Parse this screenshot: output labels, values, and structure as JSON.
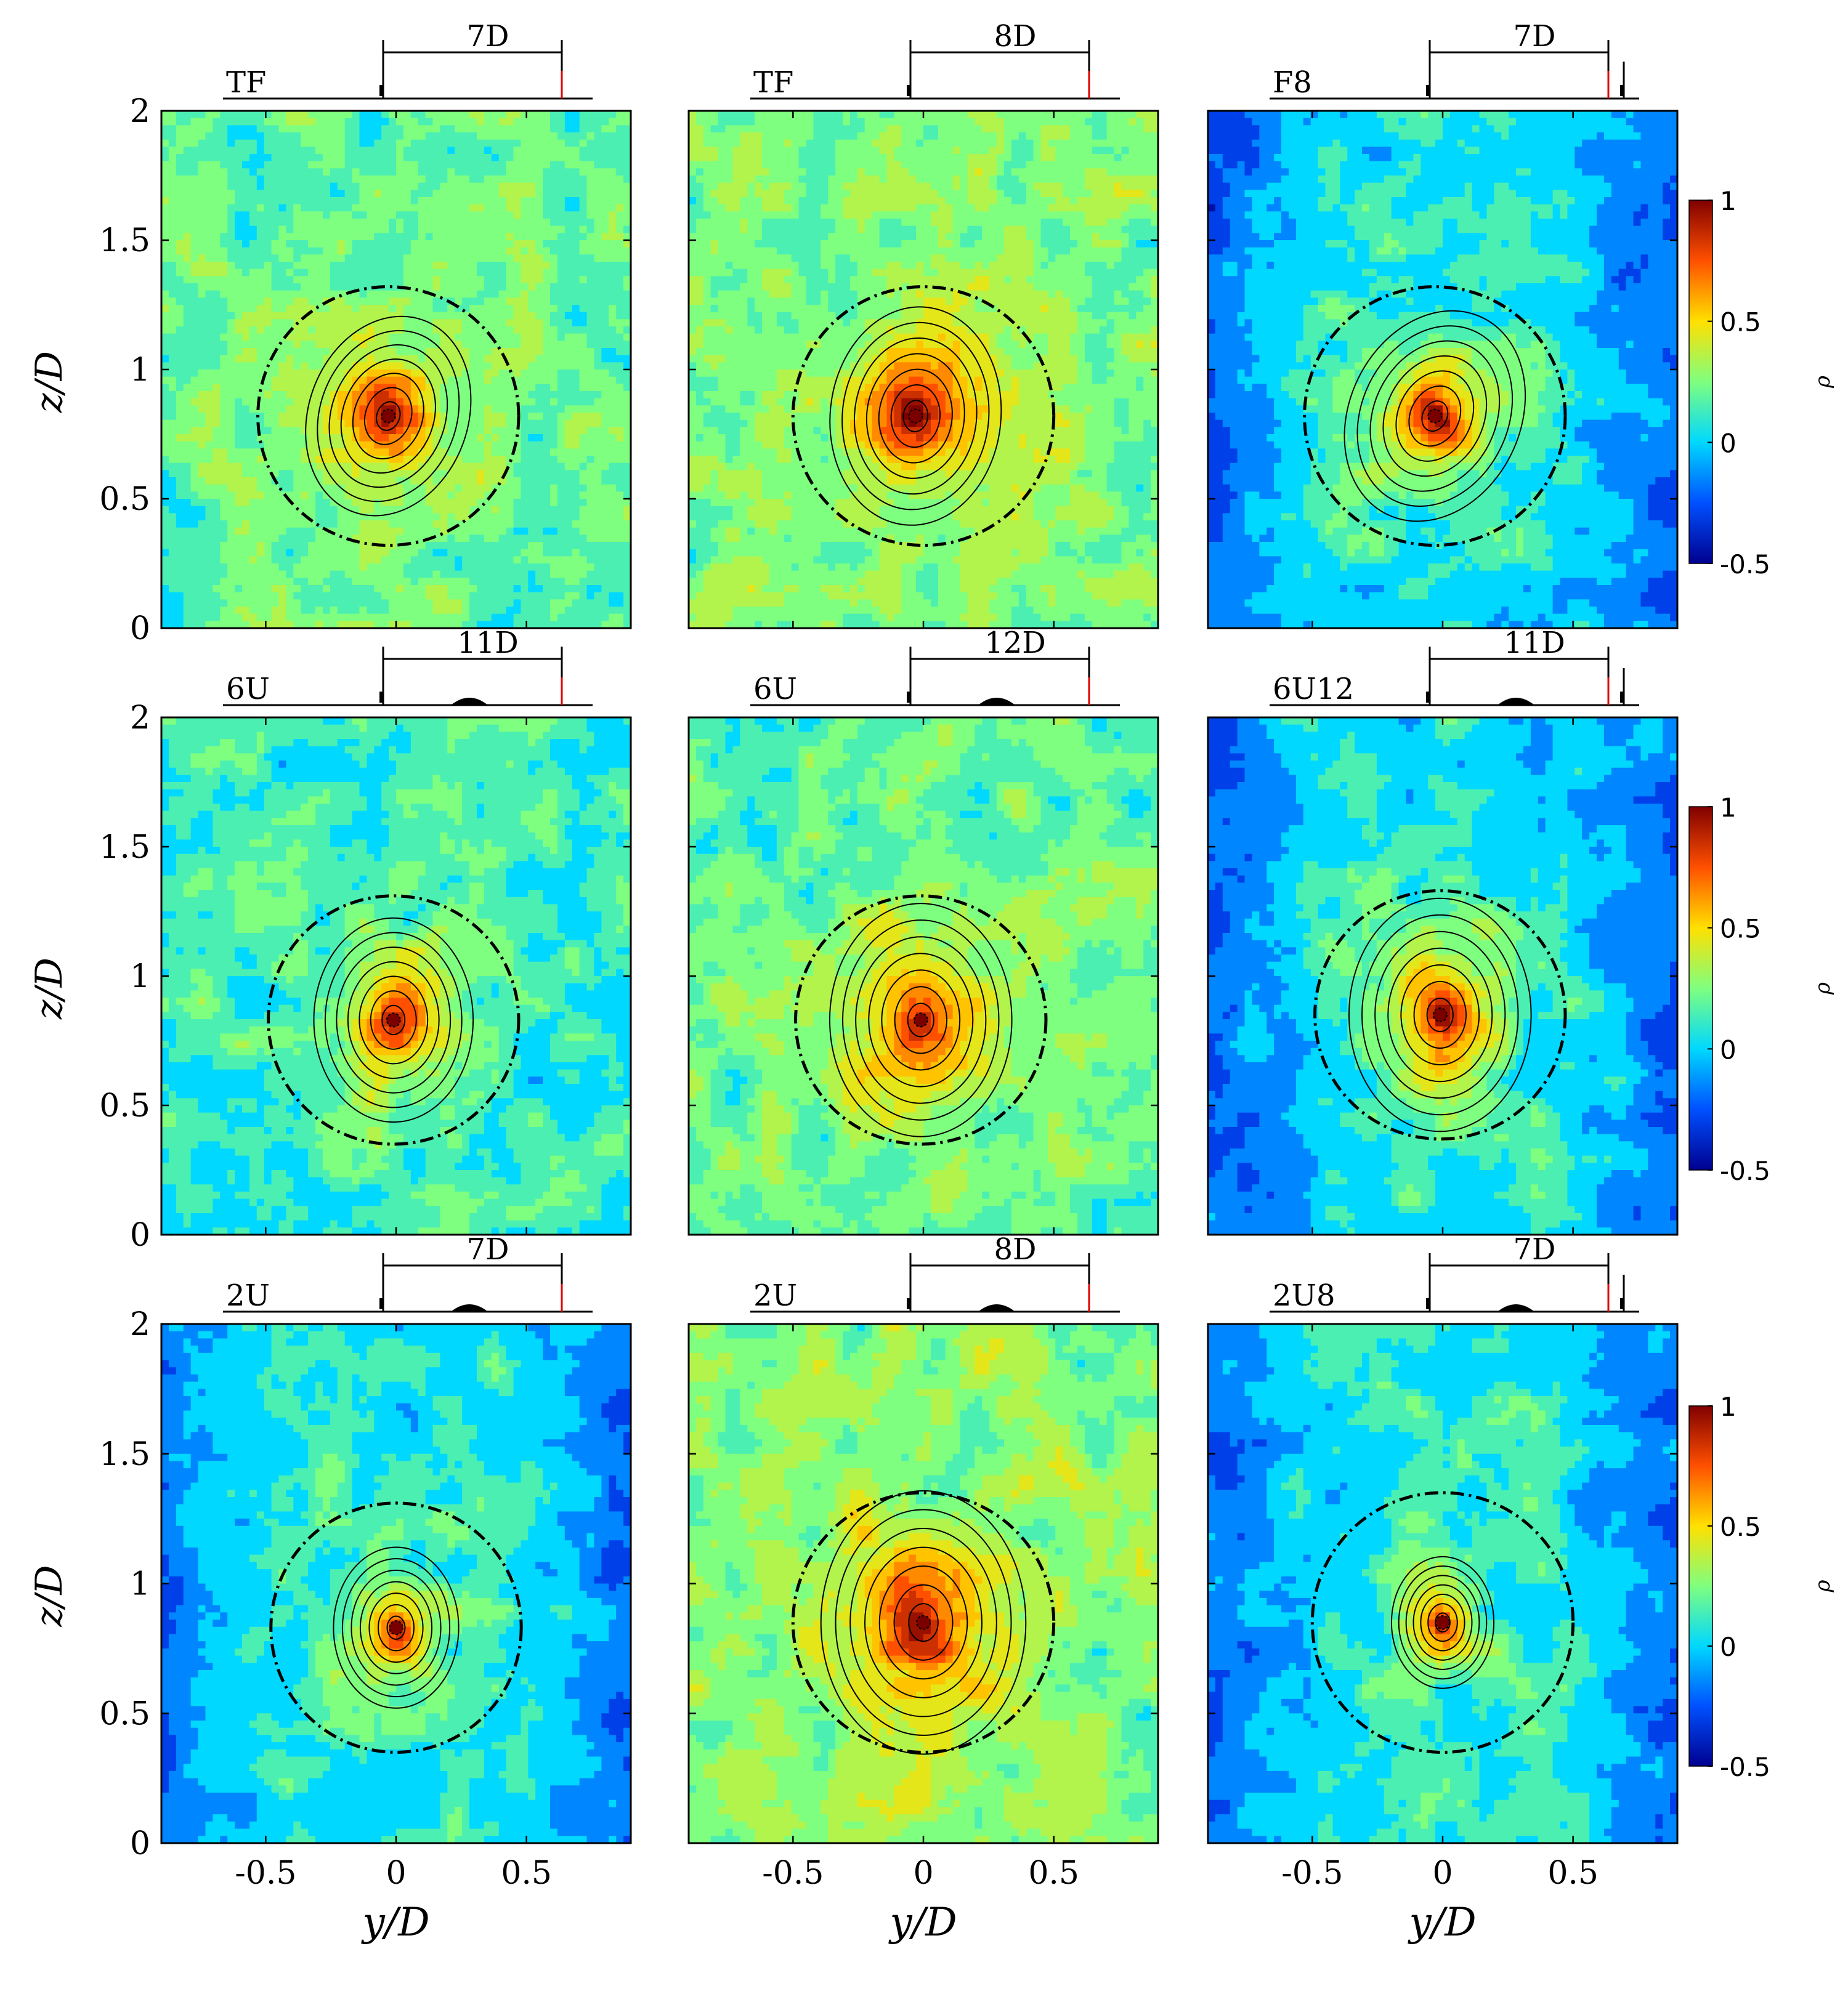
{
  "figure": {
    "type": "contour",
    "description_free": true
  },
  "axes_text": {
    "y_axis_label": "z/D",
    "x_axis_label": "y/D",
    "z_ticks": [
      "0",
      "0.5",
      "1",
      "1.5",
      "2"
    ],
    "y_ticks": [
      "-0.5",
      "0",
      "0.5"
    ]
  },
  "colorbar": {
    "label": "ρ",
    "ticks": [
      "1",
      "0.5",
      "0",
      "-0.5"
    ],
    "range": [
      -0.5,
      1
    ],
    "colors": [
      "#00008f",
      "#0050ff",
      "#00d8ff",
      "#7fff7f",
      "#ffe000",
      "#ff5000",
      "#800000"
    ]
  },
  "chart_data": [
    {
      "type": "contour",
      "panel": "TF",
      "label": "TF",
      "distance_label": "7D",
      "second_turbine": false,
      "hill": false,
      "ylim": [
        0,
        2
      ],
      "xlim": [
        -0.9,
        0.9
      ],
      "center": {
        "y": -0.03,
        "z": 0.82
      },
      "circle": {
        "y": -0.03,
        "z": 0.82,
        "r": 0.5
      },
      "peak": 1.0,
      "background": 0.2,
      "spread": 0.28,
      "tilt": -0.35,
      "xlabel": "",
      "ylabel": "z/D"
    },
    {
      "type": "contour",
      "panel": "TF",
      "label": "TF",
      "distance_label": "8D",
      "second_turbine": false,
      "hill": false,
      "ylim": [
        0,
        2
      ],
      "xlim": [
        -0.9,
        0.9
      ],
      "center": {
        "y": -0.03,
        "z": 0.82
      },
      "circle": {
        "y": 0.0,
        "z": 0.82,
        "r": 0.5
      },
      "peak": 1.0,
      "background": 0.25,
      "spread": 0.3,
      "tilt": -0.1,
      "xlabel": "",
      "ylabel": ""
    },
    {
      "type": "contour",
      "panel": "F8",
      "label": "F8",
      "distance_label": "7D",
      "second_turbine": true,
      "hill": false,
      "ylim": [
        0,
        2
      ],
      "xlim": [
        -0.9,
        0.9
      ],
      "center": {
        "y": -0.03,
        "z": 0.82
      },
      "circle": {
        "y": -0.03,
        "z": 0.82,
        "r": 0.5
      },
      "peak": 1.0,
      "background": 0.05,
      "spread": 0.3,
      "tilt": -0.45,
      "xlabel": "",
      "ylabel": ""
    },
    {
      "type": "contour",
      "panel": "6U",
      "label": "6U",
      "distance_label": "11D",
      "second_turbine": false,
      "hill": true,
      "ylim": [
        0,
        2
      ],
      "xlim": [
        -0.9,
        0.9
      ],
      "center": {
        "y": -0.01,
        "z": 0.83
      },
      "circle": {
        "y": -0.01,
        "z": 0.83,
        "r": 0.48
      },
      "peak": 1.0,
      "background": 0.12,
      "spread": 0.28,
      "tilt": 0.0,
      "xlabel": "",
      "ylabel": "z/D"
    },
    {
      "type": "contour",
      "panel": "6U",
      "label": "6U",
      "distance_label": "12D",
      "second_turbine": false,
      "hill": true,
      "ylim": [
        0,
        2
      ],
      "xlim": [
        -0.9,
        0.9
      ],
      "center": {
        "y": -0.01,
        "z": 0.83
      },
      "circle": {
        "y": -0.01,
        "z": 0.83,
        "r": 0.48
      },
      "peak": 1.0,
      "background": 0.2,
      "spread": 0.32,
      "tilt": 0.0,
      "xlabel": "",
      "ylabel": ""
    },
    {
      "type": "contour",
      "panel": "6U12",
      "label": "6U12",
      "distance_label": "11D",
      "second_turbine": true,
      "hill": true,
      "ylim": [
        0,
        2
      ],
      "xlim": [
        -0.9,
        0.9
      ],
      "center": {
        "y": -0.01,
        "z": 0.85
      },
      "circle": {
        "y": -0.01,
        "z": 0.85,
        "r": 0.48
      },
      "peak": 1.0,
      "background": 0.05,
      "spread": 0.32,
      "tilt": 0.0,
      "xlabel": "",
      "ylabel": ""
    },
    {
      "type": "contour",
      "panel": "2U",
      "label": "2U",
      "distance_label": "7D",
      "second_turbine": false,
      "hill": true,
      "ylim": [
        0,
        2
      ],
      "xlim": [
        -0.9,
        0.9
      ],
      "center": {
        "y": 0.0,
        "z": 0.83
      },
      "circle": {
        "y": 0.0,
        "z": 0.83,
        "r": 0.48
      },
      "peak": 1.0,
      "background": 0.08,
      "spread": 0.22,
      "tilt": 0.0,
      "xlabel": "y/D",
      "ylabel": "z/D"
    },
    {
      "type": "contour",
      "panel": "2U",
      "label": "2U",
      "distance_label": "8D",
      "second_turbine": false,
      "hill": true,
      "ylim": [
        0,
        2
      ],
      "xlim": [
        -0.9,
        0.9
      ],
      "center": {
        "y": 0.0,
        "z": 0.85
      },
      "circle": {
        "y": 0.0,
        "z": 0.85,
        "r": 0.5
      },
      "peak": 1.0,
      "background": 0.25,
      "spread": 0.36,
      "tilt": 0.0,
      "xlabel": "y/D",
      "ylabel": ""
    },
    {
      "type": "contour",
      "panel": "2U8",
      "label": "2U8",
      "distance_label": "7D",
      "second_turbine": true,
      "hill": true,
      "ylim": [
        0,
        2
      ],
      "xlim": [
        -0.9,
        0.9
      ],
      "center": {
        "y": 0.0,
        "z": 0.85
      },
      "circle": {
        "y": 0.0,
        "z": 0.85,
        "r": 0.5
      },
      "peak": 1.0,
      "background": 0.08,
      "spread": 0.18,
      "tilt": 0.0,
      "xlabel": "y/D",
      "ylabel": ""
    }
  ]
}
